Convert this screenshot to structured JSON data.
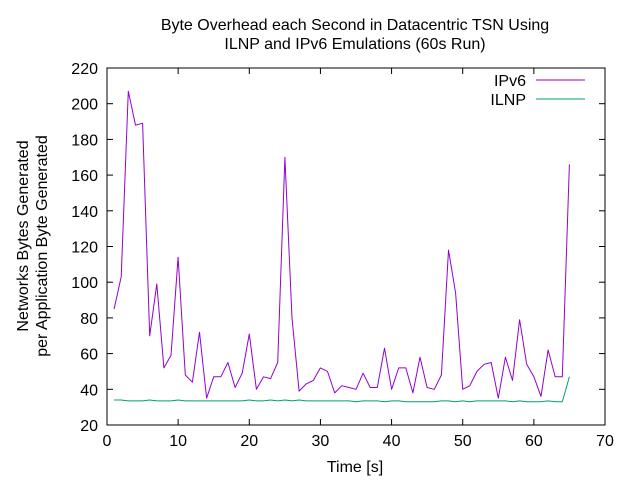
{
  "chart_data": {
    "type": "line",
    "title": [
      "Byte Overhead each Second in Datacentric TSN Using",
      "ILNP and IPv6 Emulations (60s Run)"
    ],
    "xlabel": "Time [s]",
    "ylabel": [
      "Networks Bytes Generated",
      "per Application Byte Generated"
    ],
    "xlim": [
      0,
      70
    ],
    "ylim": [
      20,
      220
    ],
    "xticks": [
      0,
      10,
      20,
      30,
      40,
      50,
      60,
      70
    ],
    "yticks": [
      20,
      40,
      60,
      80,
      100,
      120,
      140,
      160,
      180,
      200,
      220
    ],
    "grid": false,
    "legend_position": "top-right",
    "series": [
      {
        "name": "IPv6",
        "color": "#9400d3",
        "x": [
          1,
          2,
          3,
          4,
          5,
          6,
          7,
          8,
          9,
          10,
          11,
          12,
          13,
          14,
          15,
          16,
          17,
          18,
          19,
          20,
          21,
          22,
          23,
          24,
          25,
          26,
          27,
          28,
          29,
          30,
          31,
          32,
          33,
          34,
          35,
          36,
          37,
          38,
          39,
          40,
          41,
          42,
          43,
          44,
          45,
          46,
          47,
          48,
          49,
          50,
          51,
          52,
          53,
          54,
          55,
          56,
          57,
          58,
          59,
          60,
          61,
          62,
          63,
          64,
          65
        ],
        "y": [
          85,
          103,
          207,
          188,
          189,
          70,
          99,
          52,
          59,
          114,
          48,
          44,
          72,
          35,
          47,
          47,
          55,
          41,
          49,
          71,
          40,
          47,
          46,
          55,
          170,
          80,
          39,
          43,
          45,
          52,
          50,
          38,
          42,
          41,
          40,
          49,
          41,
          41,
          63,
          40,
          52,
          52,
          38,
          58,
          41,
          40,
          48,
          118,
          94,
          40,
          42,
          50,
          54,
          55,
          35,
          58,
          45,
          79,
          54,
          47,
          36,
          62,
          47,
          47,
          166
        ]
      },
      {
        "name": "ILNP",
        "color": "#009e73",
        "x": [
          1,
          2,
          3,
          4,
          5,
          6,
          7,
          8,
          9,
          10,
          11,
          12,
          13,
          14,
          15,
          16,
          17,
          18,
          19,
          20,
          21,
          22,
          23,
          24,
          25,
          26,
          27,
          28,
          29,
          30,
          31,
          32,
          33,
          34,
          35,
          36,
          37,
          38,
          39,
          40,
          41,
          42,
          43,
          44,
          45,
          46,
          47,
          48,
          49,
          50,
          51,
          52,
          53,
          54,
          55,
          56,
          57,
          58,
          59,
          60,
          61,
          62,
          63,
          64,
          65
        ],
        "y": [
          34,
          34,
          33.5,
          33.5,
          33.5,
          34,
          33.5,
          33.5,
          33.5,
          34,
          33.5,
          33.5,
          33.5,
          33.5,
          33.5,
          33.5,
          33.5,
          33.5,
          33.5,
          34,
          33.5,
          33.5,
          34,
          33.5,
          34,
          33.5,
          34,
          33.5,
          33.5,
          33.5,
          33.5,
          33.5,
          33.5,
          33.5,
          33,
          33.5,
          33.5,
          33.5,
          33,
          33.5,
          33.5,
          33,
          33,
          33,
          33,
          33,
          33.5,
          33.5,
          33,
          33.5,
          33,
          33.5,
          33.5,
          33.5,
          33.5,
          33.5,
          33,
          33.5,
          33,
          33,
          33,
          33.5,
          33,
          33,
          47
        ]
      }
    ]
  }
}
